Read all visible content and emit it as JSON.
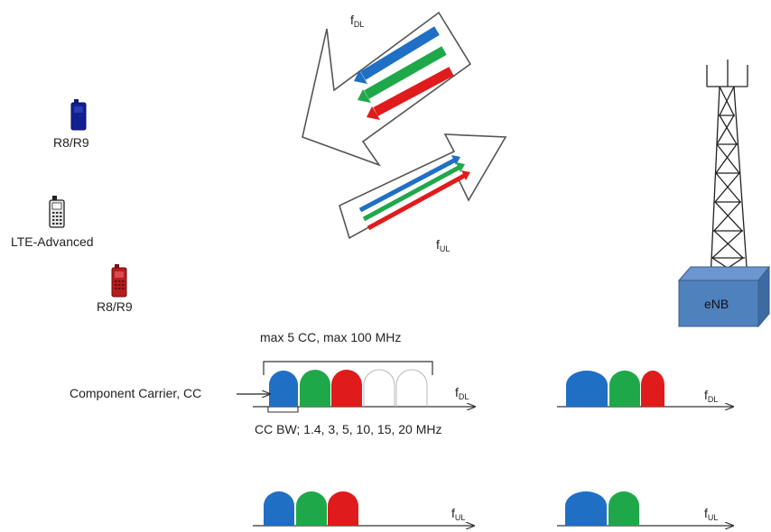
{
  "devices": {
    "blue_phone_label": "R8/R9",
    "lte_phone_label": "LTE-Advanced",
    "red_phone_label": "R8/R9"
  },
  "links": {
    "downlink": {
      "symbol": "f",
      "subscript": "DL"
    },
    "uplink": {
      "symbol": "f",
      "subscript": "UL"
    }
  },
  "station": {
    "label": "eNB"
  },
  "spectrum": {
    "max_label": "max 5 CC, max 100 MHz",
    "cc_label": "Component Carrier, CC",
    "bw_label": "CC BW; 1.4, 3, 5, 10, 15, 20 MHz",
    "axis_dl": {
      "symbol": "f",
      "subscript": "DL"
    },
    "axis_ul": {
      "symbol": "f",
      "subscript": "UL"
    },
    "axis_dl_right": {
      "symbol": "f",
      "subscript": "DL"
    },
    "axis_ul_right": {
      "symbol": "f",
      "subscript": "UL"
    }
  },
  "colors": {
    "blue": "#1f6fc5",
    "green": "#1fa84a",
    "red": "#e01b1b",
    "enb_fill": "#4f81bd",
    "enb_stroke": "#385d8a"
  }
}
